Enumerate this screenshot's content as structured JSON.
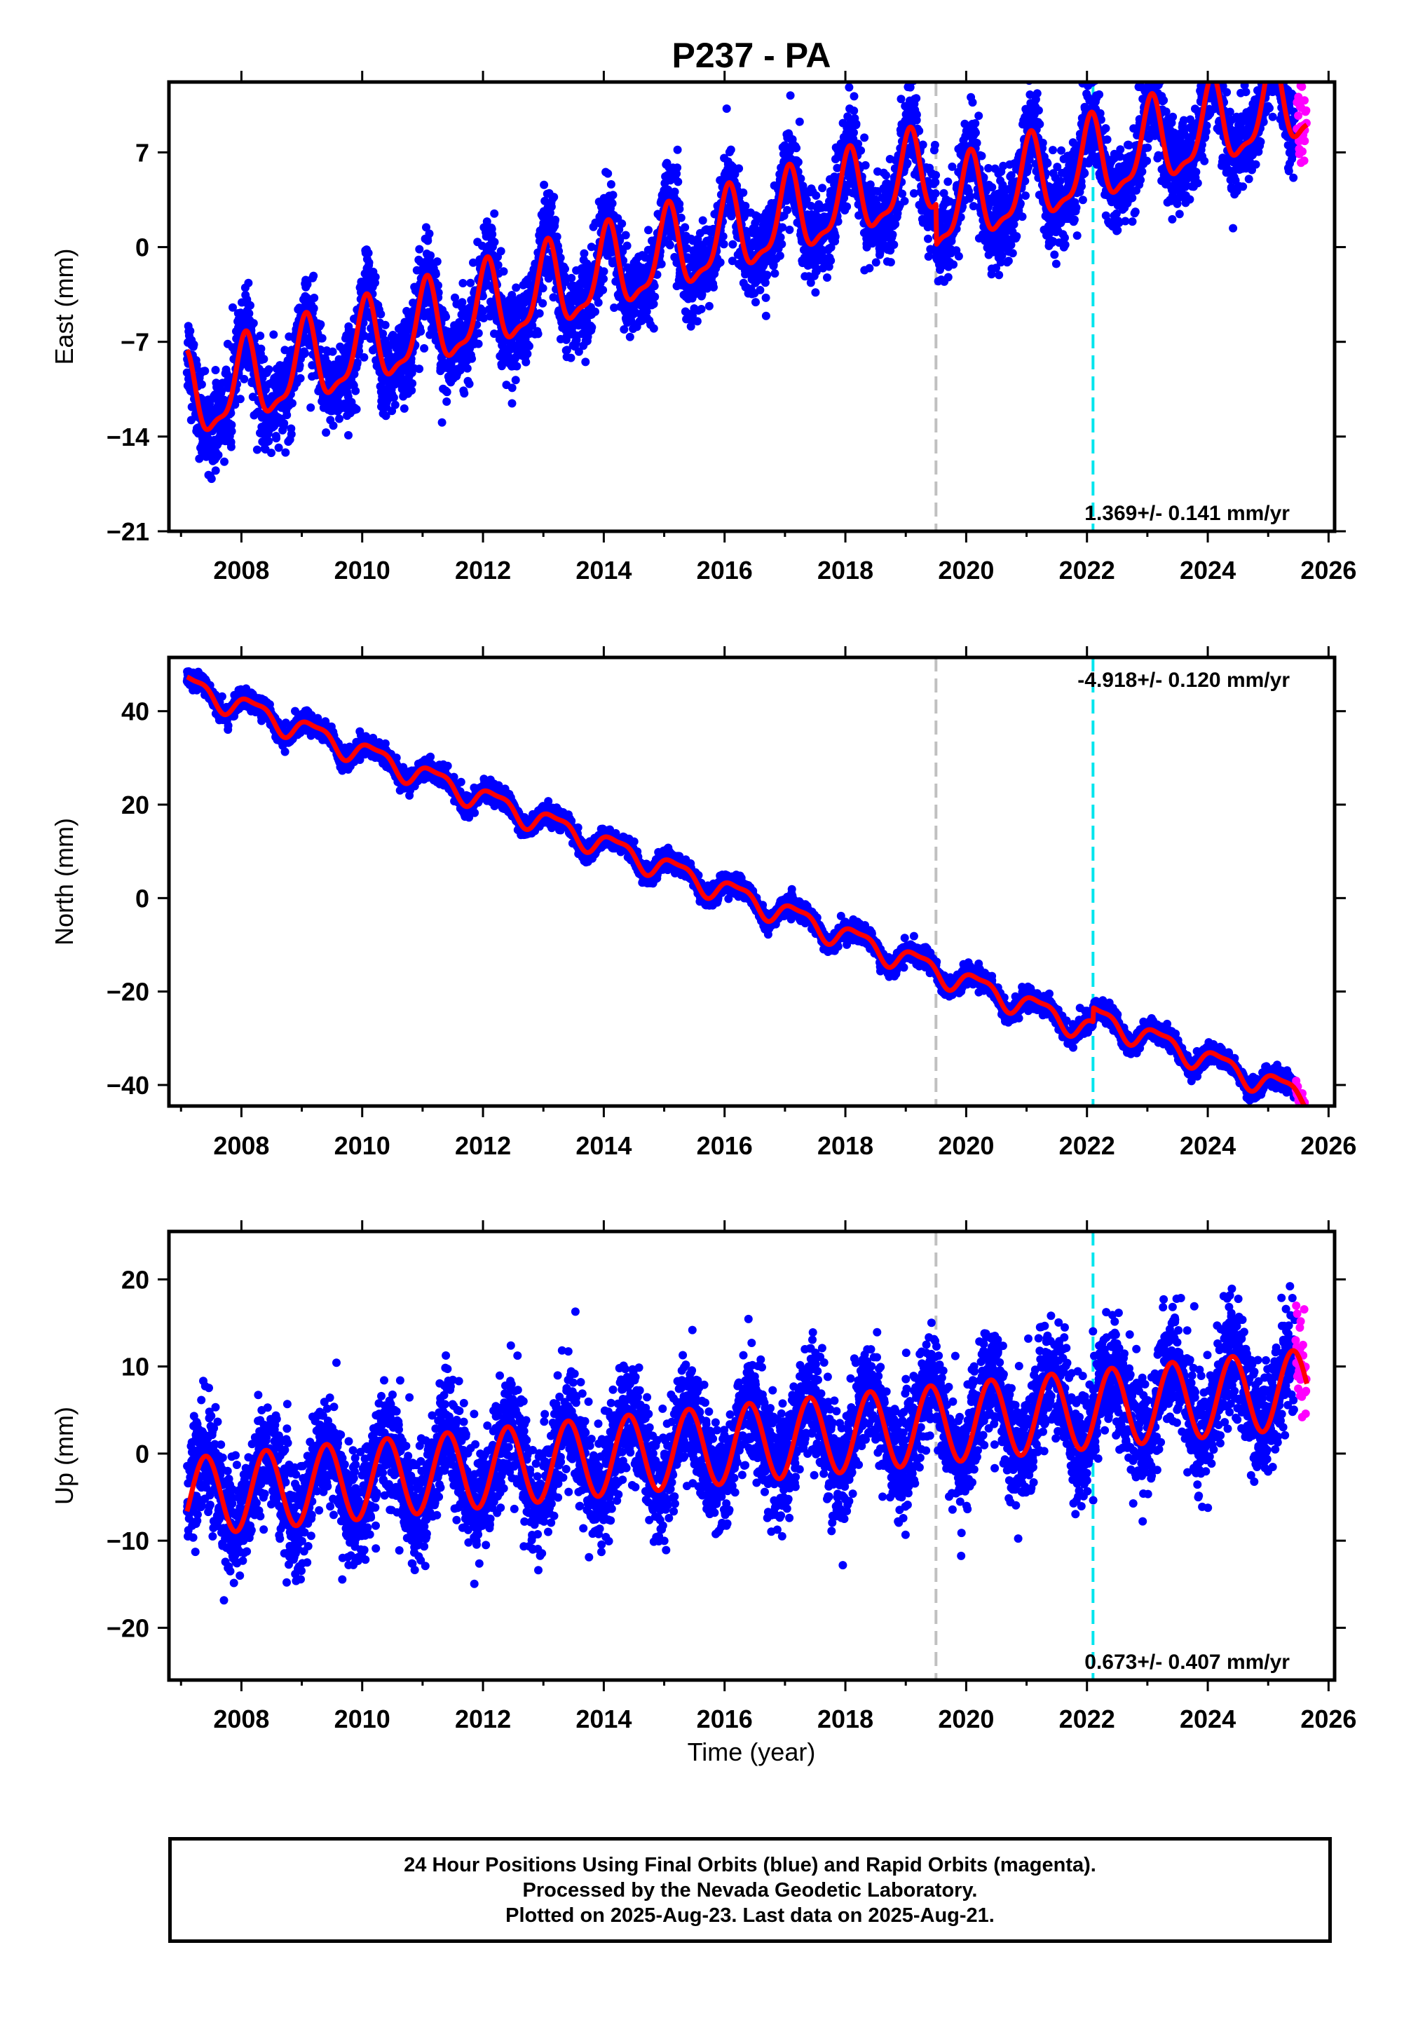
{
  "colors": {
    "final_orbits": "#0000ff",
    "rapid_orbits": "#ff00ff",
    "model": "#ff0000",
    "equipment_change": "#c0c0c0",
    "event": "#00e5ee"
  },
  "chart_data": {
    "type": "scatter",
    "title": "P237 - PA",
    "xlabel": "Time (year)",
    "xlim": [
      2006.8,
      2026.1
    ],
    "x_ticks": [
      "2008",
      "2010",
      "2012",
      "2014",
      "2016",
      "2018",
      "2020",
      "2022",
      "2024",
      "2026"
    ],
    "x_tick_values": [
      2008,
      2010,
      2012,
      2014,
      2016,
      2018,
      2020,
      2022,
      2024,
      2026
    ],
    "vertical_lines": [
      {
        "x": 2019.5,
        "color": "#c0c0c0",
        "style": "dashed"
      },
      {
        "x": 2022.1,
        "color": "#00e5ee",
        "style": "dashed"
      }
    ],
    "data_start": 2007.1,
    "data_end": 2025.64,
    "rapid_start": 2025.45,
    "panels": [
      {
        "component": "east",
        "ylabel": "East (mm)",
        "ylim": [
          -21,
          12.2
        ],
        "y_ticks": [
          "-21",
          "-14",
          "-7",
          "0",
          "7"
        ],
        "y_tick_values": [
          -21,
          -14,
          -7,
          0,
          7
        ],
        "rate_text": "1.369+/- 0.141 mm/yr",
        "rate_position": "bottom-right",
        "model": {
          "offset": -11.5,
          "trend": 1.369,
          "annual_amplitude": 3.0,
          "annual_phase": 1.2,
          "semiannual_amplitude": 1.0,
          "semiannual_phase": 0.5,
          "breaks": [
            {
              "x": 2019.5,
              "jump": -3.0
            }
          ],
          "noise": 1.6
        }
      },
      {
        "component": "north",
        "ylabel": "North (mm)",
        "ylim": [
          -44.5,
          51.5
        ],
        "y_ticks": [
          "-40",
          "-20",
          "0",
          "20",
          "40"
        ],
        "y_tick_values": [
          -40,
          -20,
          0,
          20,
          40
        ],
        "rate_text": "-4.918+/- 0.120 mm/yr",
        "rate_position": "top-right",
        "model": {
          "offset": 45.5,
          "trend": -4.918,
          "annual_amplitude": 2.4,
          "annual_phase": 0.3,
          "semiannual_amplitude": 0.8,
          "semiannual_phase": 2.0,
          "breaks": [
            {
              "x": 2022.1,
              "jump": 3.0
            }
          ],
          "noise": 1.0
        }
      },
      {
        "component": "up",
        "ylabel": "Up (mm)",
        "ylim": [
          -26,
          25.5
        ],
        "y_ticks": [
          "-20",
          "-10",
          "0",
          "10",
          "20"
        ],
        "y_tick_values": [
          -20,
          -10,
          0,
          10,
          20
        ],
        "rate_text": "0.673+/- 0.407 mm/yr",
        "rate_position": "bottom-right",
        "model": {
          "offset": -5.0,
          "trend": 0.673,
          "annual_amplitude": 4.5,
          "annual_phase": -1.0,
          "semiannual_amplitude": 0.0,
          "semiannual_phase": 0.0,
          "breaks": [],
          "noise": 3.2
        }
      }
    ]
  },
  "footer": {
    "line1": "24 Hour Positions Using Final Orbits (blue) and Rapid Orbits (magenta).",
    "line2": "Processed by the Nevada Geodetic Laboratory.",
    "line3": "Plotted on 2025-Aug-23. Last data on 2025-Aug-21."
  }
}
